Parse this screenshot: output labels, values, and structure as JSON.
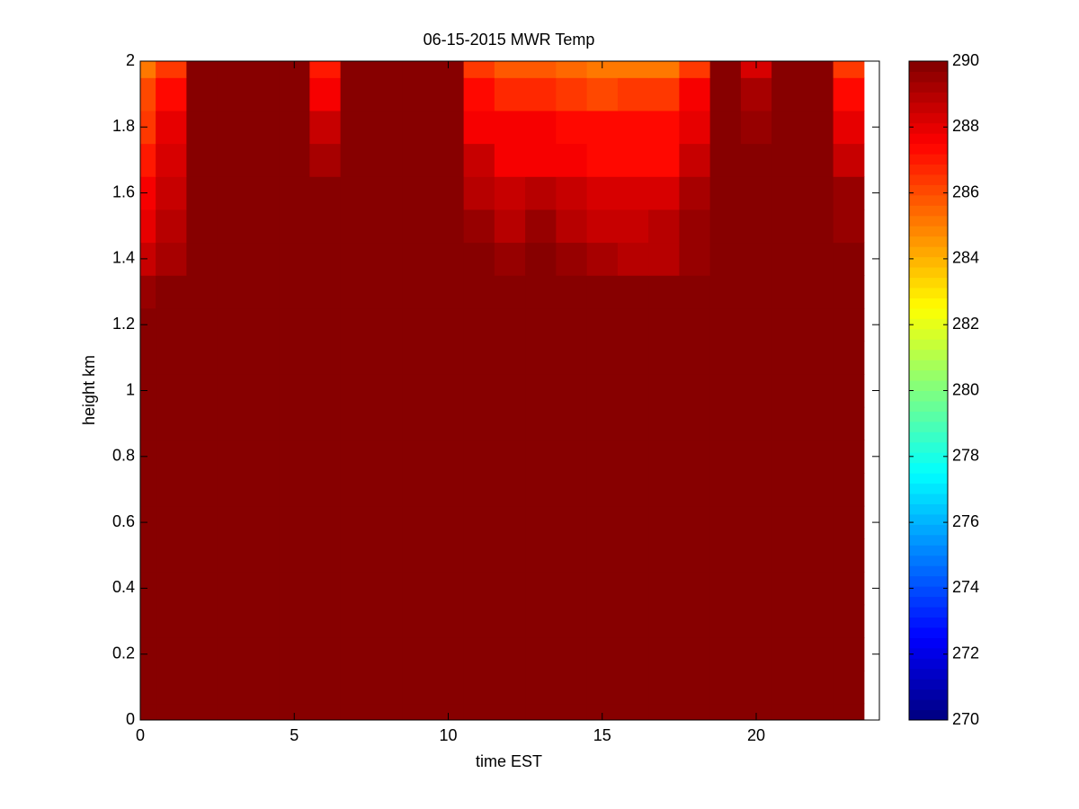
{
  "chart_data": {
    "type": "heatmap",
    "title": "06-15-2015 MWR Temp",
    "x_label": "time EST",
    "y_label": "height km",
    "x": [
      0,
      1,
      2,
      3,
      4,
      5,
      6,
      7,
      8,
      9,
      10,
      11,
      12,
      13,
      14,
      15,
      16,
      17,
      18,
      19,
      20,
      21,
      22,
      23
    ],
    "y": [
      0,
      0.1,
      0.2,
      0.3,
      0.4,
      0.5,
      0.6,
      0.7,
      0.8,
      0.9,
      1,
      1.1,
      1.2,
      1.3,
      1.4,
      1.5,
      1.6,
      1.7,
      1.8,
      1.9,
      2
    ],
    "z": [
      [
        290,
        290,
        290,
        290,
        290,
        290,
        290,
        290,
        290,
        290,
        290,
        290,
        290,
        290,
        290,
        290,
        290,
        290,
        290,
        290,
        290,
        290,
        290,
        290
      ],
      [
        290,
        290,
        290,
        290,
        290,
        290,
        290,
        290,
        290,
        290,
        290,
        290,
        290,
        290,
        290,
        290,
        290,
        290,
        290,
        290,
        290,
        290,
        290,
        290
      ],
      [
        290,
        290,
        290,
        290,
        290,
        290,
        290,
        290,
        290,
        290,
        290,
        290,
        290,
        290,
        290,
        290,
        290,
        290,
        290,
        290,
        290,
        290,
        290,
        290
      ],
      [
        290,
        290,
        290,
        290,
        290,
        290,
        290,
        290,
        290,
        290,
        290,
        290,
        290,
        290,
        290,
        290,
        290,
        290,
        290,
        290,
        290,
        290,
        290,
        290
      ],
      [
        290,
        290,
        290,
        290,
        290,
        290,
        290,
        290,
        290,
        290,
        290,
        290,
        290,
        290,
        290,
        290,
        290,
        290,
        290,
        290,
        290,
        290,
        290,
        290
      ],
      [
        290,
        290,
        290,
        290,
        290,
        290,
        290,
        290,
        290,
        290,
        290,
        290,
        290,
        290,
        290,
        290,
        290,
        290,
        290,
        290,
        290,
        290,
        290,
        290
      ],
      [
        290,
        290,
        290,
        290,
        290,
        290,
        290,
        290,
        290,
        290,
        290,
        290,
        290,
        290,
        290,
        290,
        290,
        290,
        290,
        290,
        290,
        290,
        290,
        290
      ],
      [
        290,
        290,
        290,
        290,
        290,
        290,
        290,
        290,
        290,
        290,
        290,
        290,
        290,
        290,
        290,
        290,
        290,
        290,
        290,
        290,
        290,
        290,
        290,
        290
      ],
      [
        290,
        290,
        290,
        290,
        290,
        290,
        290,
        290,
        290,
        290,
        290,
        290,
        290,
        290,
        290,
        290,
        290,
        290,
        290,
        290,
        290,
        290,
        290,
        290
      ],
      [
        290,
        290,
        290,
        290,
        290,
        290,
        290,
        290,
        290,
        290,
        290,
        290,
        290,
        290,
        290,
        290,
        290,
        290,
        290,
        290,
        290,
        290,
        290,
        290
      ],
      [
        290,
        290,
        290,
        290,
        290,
        290,
        290,
        290,
        290,
        290,
        290,
        290,
        290,
        290,
        290,
        290,
        290,
        290,
        290,
        290,
        290,
        290,
        290,
        290
      ],
      [
        290,
        290,
        290,
        290,
        290,
        290,
        290,
        290,
        290,
        290,
        290,
        290,
        290,
        290,
        290,
        290,
        290,
        290,
        290,
        290,
        290,
        290,
        290,
        290
      ],
      [
        290,
        290,
        290,
        290,
        290,
        290,
        290,
        290,
        290,
        290,
        290,
        290,
        290,
        290,
        290,
        290,
        290,
        290,
        290,
        290,
        290,
        290,
        290,
        290
      ],
      [
        289.5,
        290,
        290,
        290,
        290,
        290,
        290,
        290,
        290,
        290,
        290,
        290,
        290,
        290,
        290,
        290,
        290,
        290,
        290,
        290,
        290,
        290,
        290,
        290
      ],
      [
        288.7,
        289.3,
        290,
        290,
        290,
        290,
        290,
        290,
        290,
        290,
        290,
        290,
        289.5,
        290,
        289.5,
        289.2,
        289,
        289,
        289.6,
        290,
        290,
        290,
        290,
        290
      ],
      [
        288,
        288.8,
        290,
        290,
        290,
        290,
        290,
        290,
        290,
        290,
        290,
        289.4,
        289,
        289.4,
        289,
        288.7,
        288.6,
        289,
        289.5,
        290,
        290,
        290,
        290,
        289.6
      ],
      [
        287.5,
        288.5,
        290,
        290,
        290,
        290,
        290,
        290,
        290,
        290,
        290,
        289,
        288.6,
        289,
        288.6,
        288.4,
        288.2,
        288.4,
        289.2,
        290,
        290,
        290,
        290,
        289.4
      ],
      [
        287,
        288.2,
        290,
        290,
        290,
        290,
        289.2,
        290,
        290,
        290,
        290,
        288.5,
        287.7,
        287.7,
        287.5,
        287.2,
        287.2,
        287.3,
        288.6,
        290,
        290,
        290,
        290,
        288.6
      ],
      [
        286.5,
        288,
        290,
        290,
        290,
        290,
        288.6,
        290,
        290,
        290,
        290,
        287.8,
        287.5,
        287.5,
        287.3,
        287.2,
        287.2,
        287.3,
        287.9,
        290,
        289.6,
        290,
        290,
        288
      ],
      [
        286,
        287.3,
        290,
        290,
        290,
        290,
        287.8,
        290,
        290,
        290,
        290,
        287.3,
        286.6,
        286.6,
        286.4,
        286.2,
        286.4,
        286.4,
        287.5,
        290,
        289.2,
        290,
        290,
        287.4
      ],
      [
        285,
        286.5,
        290,
        290,
        290,
        290,
        287,
        290,
        290,
        290,
        290,
        286.3,
        285.8,
        285.8,
        285.5,
        285.3,
        285.3,
        285.3,
        286.5,
        290,
        288.2,
        290,
        290,
        286.5
      ]
    ],
    "xlim": [
      0,
      24
    ],
    "xticks": [
      0,
      5,
      10,
      15,
      20
    ],
    "ylim": [
      0,
      2
    ],
    "yticks": [
      0,
      0.2,
      0.4,
      0.6,
      0.8,
      1,
      1.2,
      1.4,
      1.6,
      1.8,
      2
    ],
    "colormap": "jet",
    "clim": [
      270,
      290
    ],
    "cticks": [
      270,
      272,
      274,
      276,
      278,
      280,
      282,
      284,
      286,
      288,
      290
    ]
  }
}
